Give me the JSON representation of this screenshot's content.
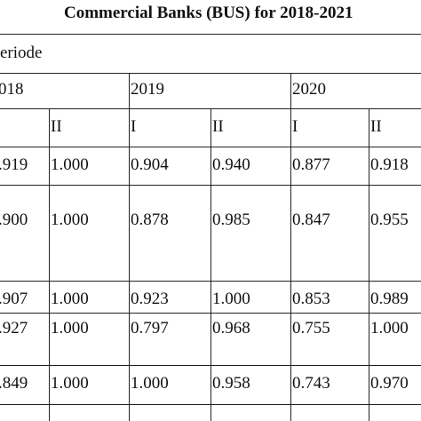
{
  "header": {
    "title": "Commercial Banks (BUS) for 2018-2021"
  },
  "table": {
    "period_label": "eriode",
    "years": [
      "018",
      "2019",
      "2020"
    ],
    "semesters": [
      "II",
      "I",
      "II",
      "I",
      "II"
    ],
    "rows": [
      [
        ".919",
        "1.000",
        "0.904",
        "0.940",
        "0.877",
        "0.918"
      ],
      [
        ".900",
        "1.000",
        "0.878",
        "0.985",
        "0.847",
        "0.955"
      ],
      [
        ".907",
        "1.000",
        "0.923",
        "1.000",
        "0.853",
        "0.989"
      ],
      [
        ".927",
        "1.000",
        "0.797",
        "0.968",
        "0.755",
        "1.000"
      ],
      [
        ".849",
        "1.000",
        "1.000",
        "0.958",
        "0.743",
        "0.970"
      ]
    ]
  }
}
